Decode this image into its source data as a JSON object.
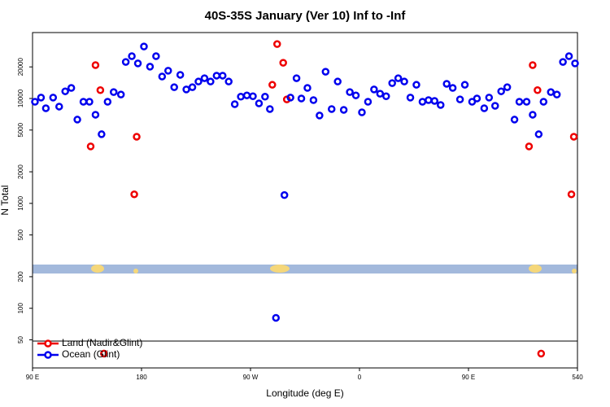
{
  "chart_data": {
    "type": "scatter",
    "title": "40S-35S January (Ver 10)   Inf to -Inf",
    "x_label": "Longitude (deg E)",
    "y_label": "N Total",
    "log_y": true,
    "legend": "bottom-left",
    "xlim": [
      90,
      540
    ],
    "xticks": [
      {
        "value": 90,
        "label": "90 E"
      },
      180,
      {
        "value": 270,
        "label": "90 W"
      },
      {
        "value": 360,
        "label": "0"
      },
      {
        "value": 450,
        "label": "90 E"
      },
      540
    ],
    "ylim": [
      27,
      42500
    ],
    "yticks": [
      50,
      100,
      200,
      500,
      1000,
      2000,
      5000,
      10000,
      20000
    ],
    "series": [
      {
        "name": "Land (Nadir&Glint)",
        "color": "#ee0000",
        "x": [
          138,
          142,
          146,
          149,
          174,
          176,
          288,
          292,
          297,
          300,
          500,
          503,
          507,
          510,
          535,
          537
        ],
        "values": [
          3490,
          20800,
          12000,
          37,
          1220,
          4320,
          13500,
          33000,
          21900,
          9800,
          3490,
          20800,
          12000,
          37,
          1220,
          4320
        ]
      },
      {
        "name": "Ocean (Glint)",
        "color": "#0000ee",
        "x": [
          92,
          97,
          101,
          107,
          112,
          117,
          122,
          127,
          132,
          137,
          142,
          147,
          152,
          157,
          163,
          167,
          172,
          177,
          182,
          187,
          192,
          197,
          202,
          207,
          212,
          217,
          222,
          227,
          232,
          237,
          242,
          247,
          252,
          257,
          262,
          267,
          272,
          277,
          282,
          286,
          291,
          298,
          303,
          308,
          312,
          317,
          322,
          327,
          332,
          337,
          342,
          347,
          352,
          357,
          362,
          367,
          372,
          377,
          382,
          387,
          392,
          397,
          402,
          407,
          412,
          417,
          422,
          427,
          432,
          437,
          443,
          447,
          453,
          457,
          463,
          467,
          472,
          477,
          482,
          488,
          492,
          498,
          503,
          508,
          512,
          518,
          523,
          528,
          533,
          538
        ],
        "values": [
          9310,
          10200,
          8070,
          10200,
          8370,
          11700,
          12600,
          6290,
          9310,
          9310,
          7000,
          4560,
          9310,
          11500,
          10900,
          22300,
          25300,
          21600,
          31300,
          20100,
          25300,
          16200,
          18400,
          12800,
          16800,
          12200,
          12800,
          14500,
          15600,
          14500,
          16500,
          16500,
          14500,
          8820,
          10400,
          10700,
          10500,
          8980,
          10400,
          7930,
          81,
          1200,
          10200,
          15600,
          10000,
          12600,
          9650,
          6880,
          18000,
          7930,
          14500,
          7790,
          11500,
          10700,
          7380,
          9310,
          12200,
          11100,
          10500,
          14000,
          15600,
          14500,
          10200,
          13500,
          9310,
          9650,
          9480,
          8670,
          13800,
          12600,
          9800,
          13500,
          9310,
          10000,
          8070,
          10200,
          8510,
          11700,
          12800,
          6290,
          9310,
          9310,
          7000,
          4560,
          9310,
          11500,
          10900,
          22300,
          25300,
          21600
        ]
      }
    ]
  }
}
